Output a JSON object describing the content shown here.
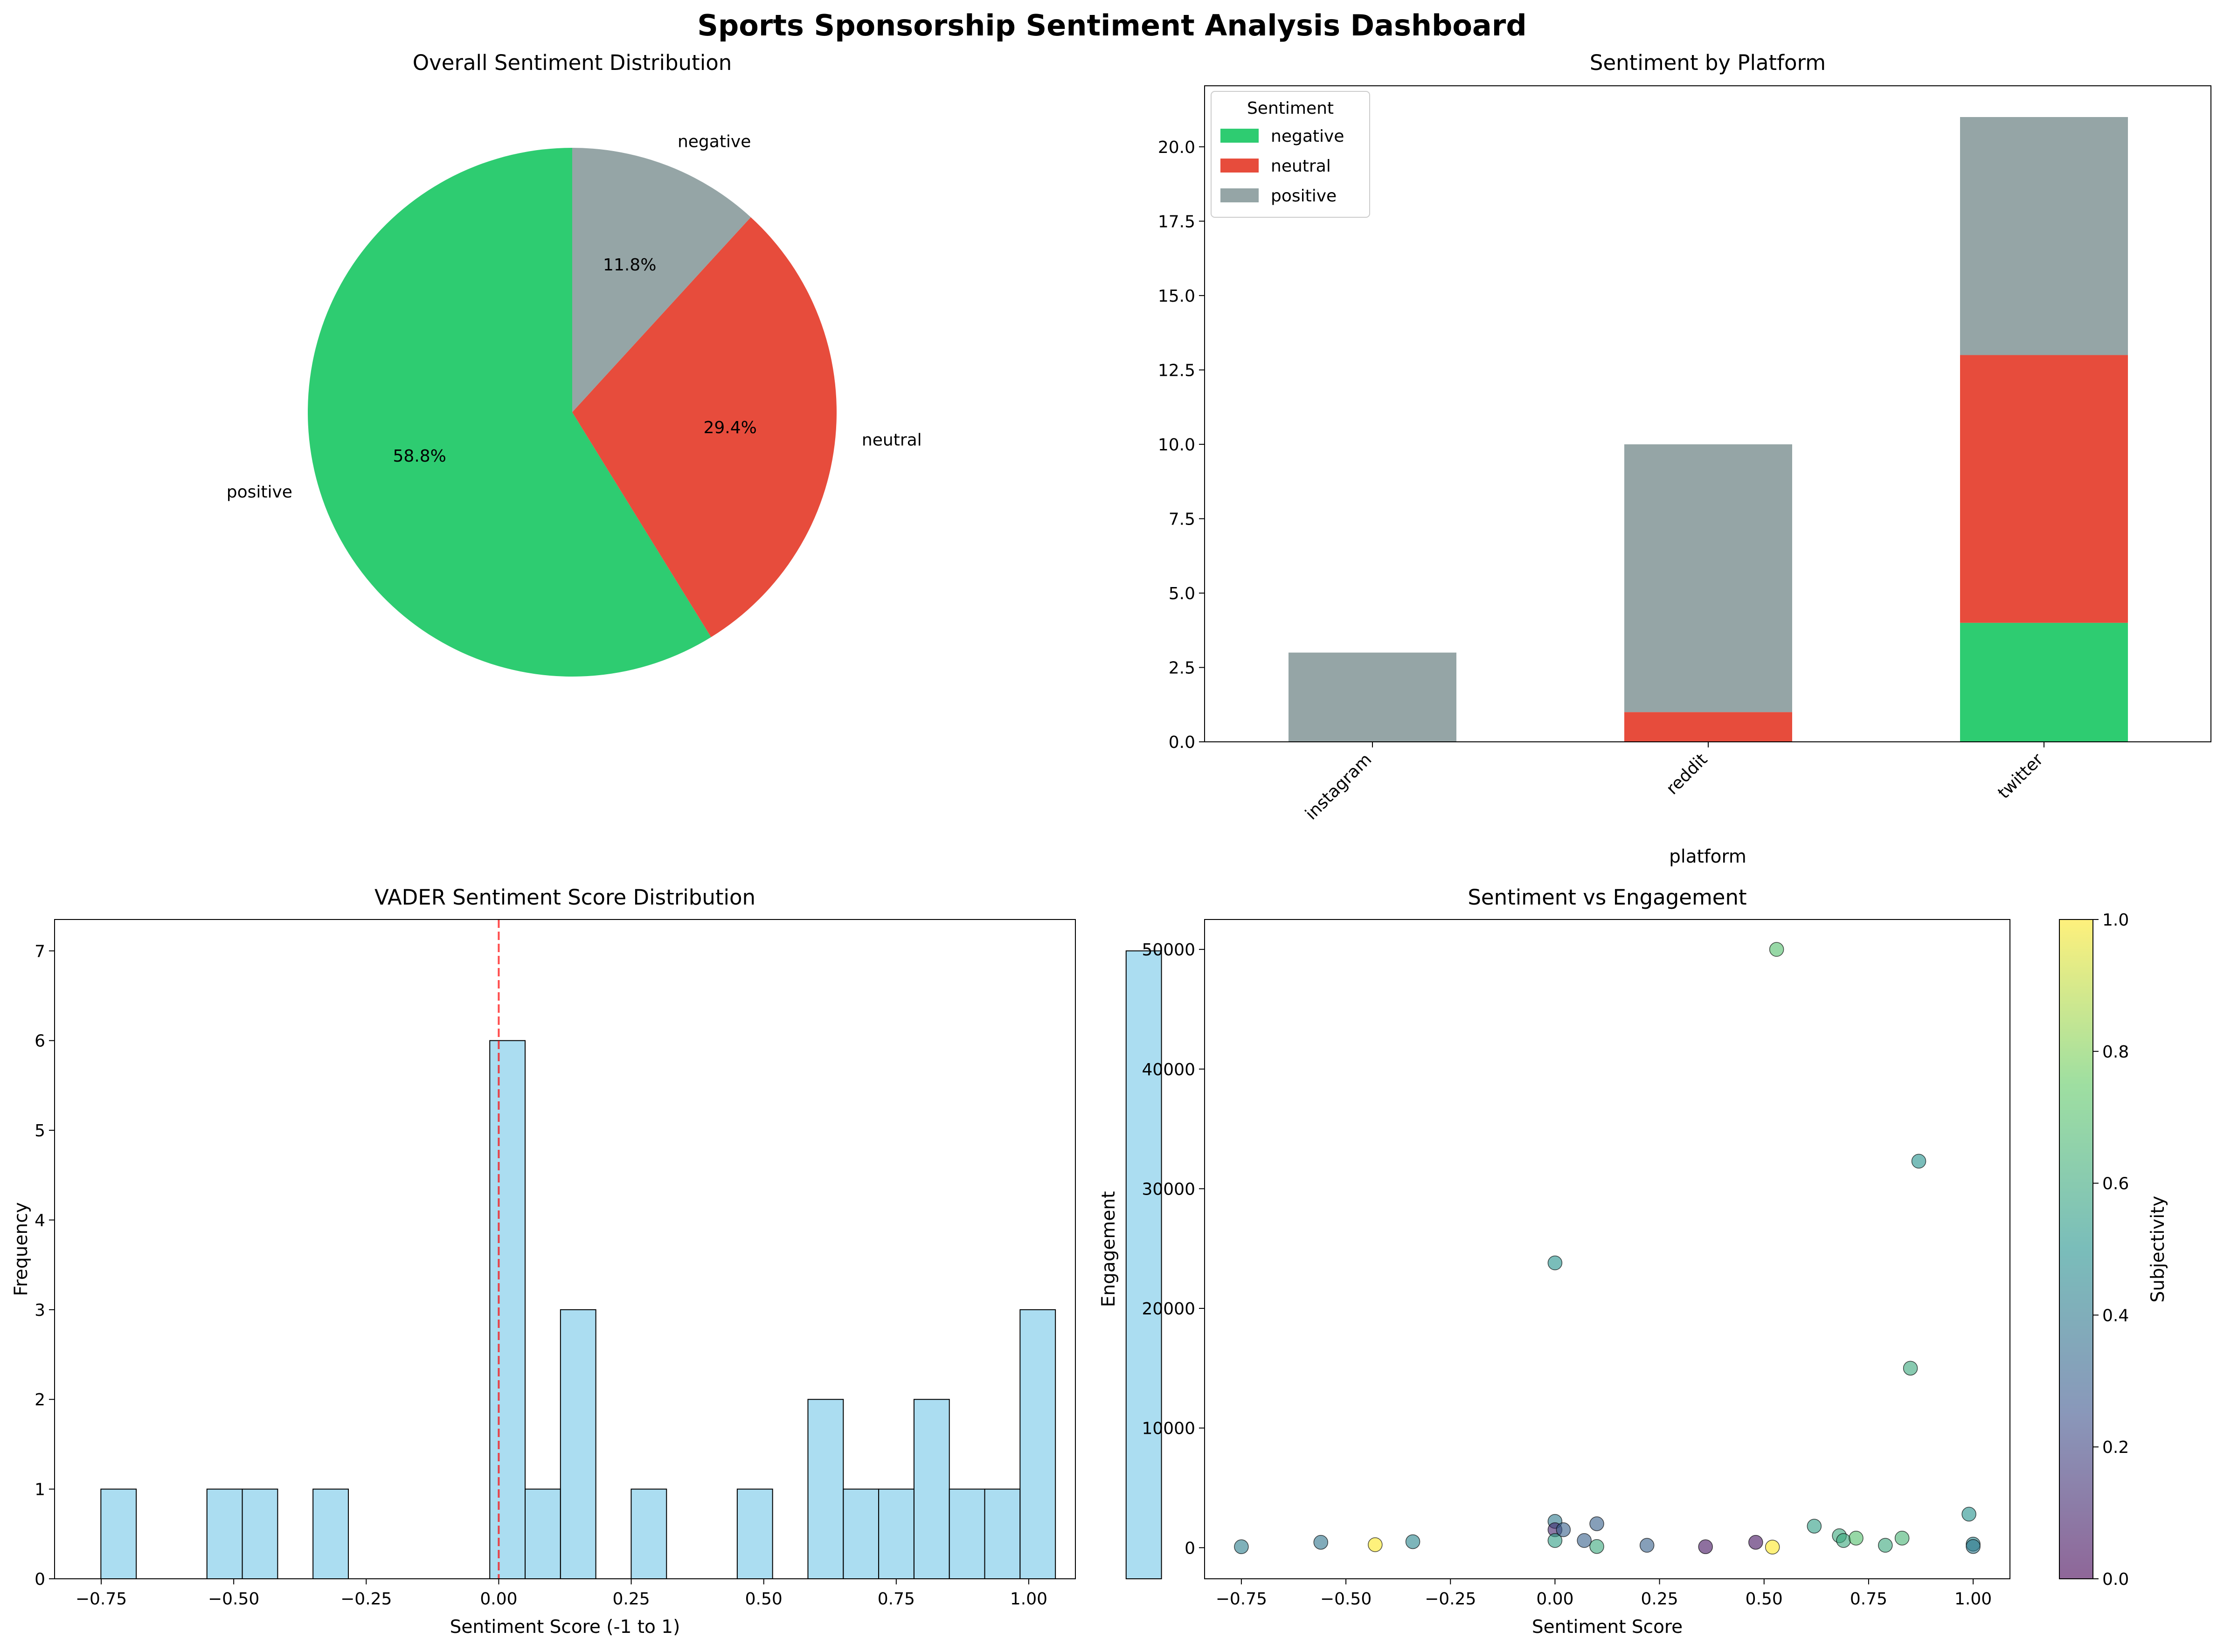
{
  "title": "Sports Sponsorship Sentiment Analysis Dashboard",
  "chart_data": [
    {
      "type": "pie",
      "title": "Overall Sentiment Distribution",
      "slices": [
        {
          "label": "positive",
          "value": 58.8,
          "pct_label": "58.8%",
          "color": "#2ecc71"
        },
        {
          "label": "neutral",
          "value": 29.4,
          "pct_label": "29.4%",
          "color": "#e74c3c"
        },
        {
          "label": "negative",
          "value": 11.8,
          "pct_label": "11.8%",
          "color": "#95a5a6"
        }
      ],
      "start_angle": 90,
      "direction": "counterclockwise"
    },
    {
      "type": "bar",
      "stacked": true,
      "title": "Sentiment by Platform",
      "xlabel": "platform",
      "ylabel": "",
      "categories": [
        "instagram",
        "reddit",
        "twitter"
      ],
      "series": [
        {
          "name": "negative",
          "color": "#2ecc71",
          "values": [
            0,
            0,
            4
          ]
        },
        {
          "name": "neutral",
          "color": "#e74c3c",
          "values": [
            0,
            1,
            9
          ]
        },
        {
          "name": "positive",
          "color": "#95a5a6",
          "values": [
            3,
            9,
            8
          ]
        }
      ],
      "ylim": [
        0,
        22.05
      ],
      "yticks": [
        "0.0",
        "2.5",
        "5.0",
        "7.5",
        "10.0",
        "12.5",
        "15.0",
        "17.5",
        "20.0"
      ],
      "legend": {
        "title": "Sentiment",
        "placement": "top-left"
      }
    },
    {
      "type": "bar",
      "subtype": "histogram",
      "title": "VADER Sentiment Score Distribution",
      "xlabel": "Sentiment Score (-1 to 1)",
      "ylabel": "Frequency",
      "bin_start": -0.7506,
      "bin_width": 0.0667,
      "counts": [
        1,
        0,
        0,
        1,
        1,
        0,
        1,
        0,
        0,
        0,
        0,
        6,
        1,
        3,
        0,
        1,
        0,
        0,
        1,
        0,
        2,
        1,
        1,
        2,
        1,
        1,
        3,
        0,
        0,
        7
      ],
      "xlim": [
        -0.838,
        1.088
      ],
      "ylim": [
        0,
        7.35
      ],
      "xticks": [
        "−0.75",
        "−0.50",
        "−0.25",
        "0.00",
        "0.25",
        "0.50",
        "0.75",
        "1.00"
      ],
      "yticks": [
        "0",
        "1",
        "2",
        "3",
        "4",
        "5",
        "6",
        "7"
      ],
      "vline": 0,
      "fill_color": "#87ceeb"
    },
    {
      "type": "scatter",
      "title": "Sentiment vs Engagement",
      "xlabel": "Sentiment Score",
      "ylabel": "Engagement",
      "colorbar_label": "Subjectivity",
      "xlim": [
        -0.838,
        1.088
      ],
      "ylim": [
        -2600,
        52500
      ],
      "xticks": [
        "−0.75",
        "−0.50",
        "−0.25",
        "0.00",
        "0.25",
        "0.50",
        "0.75",
        "1.00"
      ],
      "yticks": [
        "0",
        "10000",
        "20000",
        "30000",
        "40000",
        "50000"
      ],
      "cticks": [
        "0.0",
        "0.2",
        "0.4",
        "0.6",
        "0.8",
        "1.0"
      ],
      "points": [
        {
          "x": -0.75,
          "y": 80,
          "c": 0.42
        },
        {
          "x": -0.56,
          "y": 450,
          "c": 0.38
        },
        {
          "x": -0.43,
          "y": 250,
          "c": 1.0
        },
        {
          "x": -0.34,
          "y": 500,
          "c": 0.45
        },
        {
          "x": 0.0,
          "y": 2200,
          "c": 0.4
        },
        {
          "x": 0.0,
          "y": 1500,
          "c": 0.1
        },
        {
          "x": 0.0,
          "y": 600,
          "c": 0.55
        },
        {
          "x": 0.0,
          "y": 23800,
          "c": 0.5
        },
        {
          "x": 0.02,
          "y": 1500,
          "c": 0.3
        },
        {
          "x": 0.07,
          "y": 600,
          "c": 0.3
        },
        {
          "x": 0.1,
          "y": 2000,
          "c": 0.3
        },
        {
          "x": 0.1,
          "y": 100,
          "c": 0.6
        },
        {
          "x": 0.22,
          "y": 200,
          "c": 0.3
        },
        {
          "x": 0.36,
          "y": 80,
          "c": 0.05
        },
        {
          "x": 0.48,
          "y": 450,
          "c": 0.05
        },
        {
          "x": 0.52,
          "y": 50,
          "c": 1.0
        },
        {
          "x": 0.53,
          "y": 50000,
          "c": 0.7
        },
        {
          "x": 0.62,
          "y": 1800,
          "c": 0.55
        },
        {
          "x": 0.68,
          "y": 1000,
          "c": 0.6
        },
        {
          "x": 0.69,
          "y": 600,
          "c": 0.6
        },
        {
          "x": 0.72,
          "y": 800,
          "c": 0.7
        },
        {
          "x": 0.79,
          "y": 200,
          "c": 0.6
        },
        {
          "x": 0.83,
          "y": 800,
          "c": 0.65
        },
        {
          "x": 0.85,
          "y": 15000,
          "c": 0.6
        },
        {
          "x": 0.87,
          "y": 32300,
          "c": 0.5
        },
        {
          "x": 0.99,
          "y": 2800,
          "c": 0.5
        },
        {
          "x": 1.0,
          "y": 300,
          "c": 0.45
        },
        {
          "x": 1.0,
          "y": 100,
          "c": 0.4
        }
      ]
    }
  ]
}
